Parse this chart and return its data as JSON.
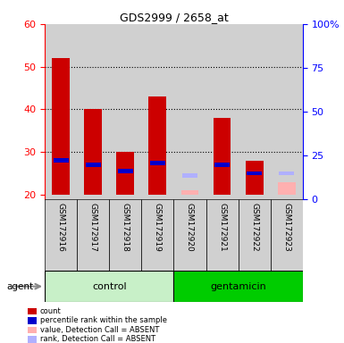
{
  "title": "GDS2999 / 2658_at",
  "samples": [
    "GSM172916",
    "GSM172917",
    "GSM172918",
    "GSM172919",
    "GSM172920",
    "GSM172921",
    "GSM172922",
    "GSM172923"
  ],
  "red_bars": [
    52,
    40,
    30,
    43,
    null,
    38,
    28,
    null
  ],
  "blue_bars": [
    28,
    27,
    25.5,
    27.5,
    null,
    27,
    25,
    null
  ],
  "pink_bars": [
    null,
    null,
    null,
    null,
    21,
    null,
    null,
    23
  ],
  "lavender_bars": [
    null,
    null,
    null,
    null,
    24.5,
    null,
    null,
    25
  ],
  "ylim_left": [
    19,
    60
  ],
  "yticks_left": [
    20,
    30,
    40,
    50,
    60
  ],
  "yticks_right": [
    0,
    25,
    50,
    75,
    100
  ],
  "yticklabels_right": [
    "0",
    "25",
    "50",
    "75",
    "100%"
  ],
  "red_color": "#cc0000",
  "blue_color": "#0000cc",
  "pink_color": "#ffb0b0",
  "lavender_color": "#b0b0ff",
  "control_bg_light": "#c8f0c8",
  "gentamicin_bg": "#00cc00",
  "sample_bg": "#d0d0d0",
  "control_label": "control",
  "gentamicin_label": "gentamicin",
  "agent_label": "agent",
  "legend_items": [
    {
      "color": "#cc0000",
      "label": "count"
    },
    {
      "color": "#0000cc",
      "label": "percentile rank within the sample"
    },
    {
      "color": "#ffb0b0",
      "label": "value, Detection Call = ABSENT"
    },
    {
      "color": "#b0b0ff",
      "label": "rank, Detection Call = ABSENT"
    }
  ]
}
